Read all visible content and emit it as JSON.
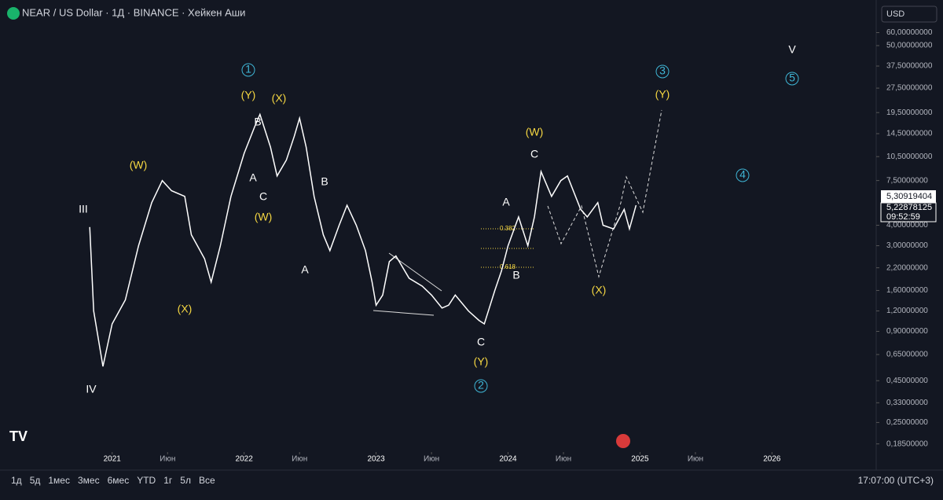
{
  "header": {
    "title": "NEAR / US Dollar · 1Д · BINANCE · Хейкен Аши",
    "currency": "USD"
  },
  "toolbar": {
    "ranges": [
      "1д",
      "5д",
      "1мес",
      "3мес",
      "6мес",
      "YTD",
      "1г",
      "5л",
      "Все"
    ],
    "clock": "17:07:00 (UTC+3)"
  },
  "annotations": [
    "III",
    "IV",
    "(W)",
    "(X)",
    "1",
    "(Y)",
    "(X)",
    "B",
    "A",
    "C",
    "(W)",
    "B",
    "A",
    "C",
    "(Y)",
    "2",
    "A",
    "B",
    "(W)",
    "C",
    "(X)",
    "3",
    "(Y)",
    "4",
    "V",
    "5",
    "0.382",
    "0.618"
  ],
  "price_labels": [
    "5,30919404",
    "5,22878125",
    "09:52:59"
  ],
  "chart_data": {
    "type": "line",
    "log_scale": true,
    "color": "#ffffff",
    "x": [
      2020.83,
      2020.86,
      2020.93,
      2021.0,
      2021.1,
      2021.2,
      2021.3,
      2021.38,
      2021.45,
      2021.55,
      2021.6,
      2021.7,
      2021.75,
      2021.82,
      2021.9,
      2022.0,
      2022.08,
      2022.12,
      2022.2,
      2022.25,
      2022.32,
      2022.38,
      2022.42,
      2022.47,
      2022.53,
      2022.6,
      2022.65,
      2022.72,
      2022.78,
      2022.85,
      2022.92,
      2022.97,
      2023.0,
      2023.05,
      2023.1,
      2023.15,
      2023.25,
      2023.35,
      2023.42,
      2023.5,
      2023.55,
      2023.6,
      2023.7,
      2023.78,
      2023.82,
      2023.9,
      2023.95,
      2024.0,
      2024.08,
      2024.15,
      2024.2,
      2024.25,
      2024.33,
      2024.4,
      2024.45,
      2024.55,
      2024.6,
      2024.68,
      2024.72,
      2024.8,
      2024.88,
      2024.92,
      2024.97
    ],
    "values": [
      3.9,
      1.2,
      0.55,
      1.0,
      1.4,
      3.0,
      5.5,
      7.5,
      6.5,
      6.0,
      3.5,
      2.5,
      1.8,
      3.0,
      6.0,
      11,
      16,
      19,
      12,
      8,
      10,
      14,
      18,
      12,
      6,
      3.5,
      2.8,
      4.0,
      5.3,
      4.0,
      2.8,
      1.8,
      1.3,
      1.5,
      2.4,
      2.6,
      1.9,
      1.7,
      1.5,
      1.25,
      1.3,
      1.5,
      1.2,
      1.05,
      1.0,
      1.6,
      2.1,
      3.0,
      4.5,
      3.0,
      4.5,
      8.5,
      6.0,
      7.5,
      8.0,
      5.0,
      4.5,
      5.5,
      4.0,
      3.8,
      5.0,
      3.8,
      5.3
    ],
    "xlim": [
      2020.15,
      2026.79
    ],
    "ylim": [
      0.165,
      72
    ],
    "xticks": [
      2021,
      {
        "value": 2021.42,
        "label": "Июн"
      },
      2022,
      {
        "value": 2022.42,
        "label": "Июн"
      },
      2023,
      {
        "value": 2023.42,
        "label": "Июн"
      },
      2024,
      {
        "value": 2024.42,
        "label": "Июн"
      },
      2025,
      {
        "value": 2025.42,
        "label": "Июн"
      },
      2026
    ],
    "yticks": [
      {
        "value": 60,
        "label": "60,00000000"
      },
      {
        "value": 50,
        "label": "50,00000000"
      },
      {
        "value": 37.5,
        "label": "37,50000000"
      },
      {
        "value": 27.5,
        "label": "27,50000000"
      },
      {
        "value": 19.5,
        "label": "19,50000000"
      },
      {
        "value": 14.5,
        "label": "14,50000000"
      },
      {
        "value": 10.5,
        "label": "10,50000000"
      },
      {
        "value": 7.5,
        "label": "7,50000000"
      },
      {
        "value": 4,
        "label": "4,00000000"
      },
      {
        "value": 3,
        "label": "3,00000000"
      },
      {
        "value": 2.2,
        "label": "2,20000000"
      },
      {
        "value": 1.6,
        "label": "1,60000000"
      },
      {
        "value": 1.2,
        "label": "1,20000000"
      },
      {
        "value": 0.9,
        "label": "0,90000000"
      },
      {
        "value": 0.65,
        "label": "0,65000000"
      },
      {
        "value": 0.45,
        "label": "0,45000000"
      },
      {
        "value": 0.33,
        "label": "0,33000000"
      },
      {
        "value": 0.25,
        "label": "0,25000000"
      },
      {
        "value": 0.185,
        "label": "0,18500000"
      }
    ]
  }
}
